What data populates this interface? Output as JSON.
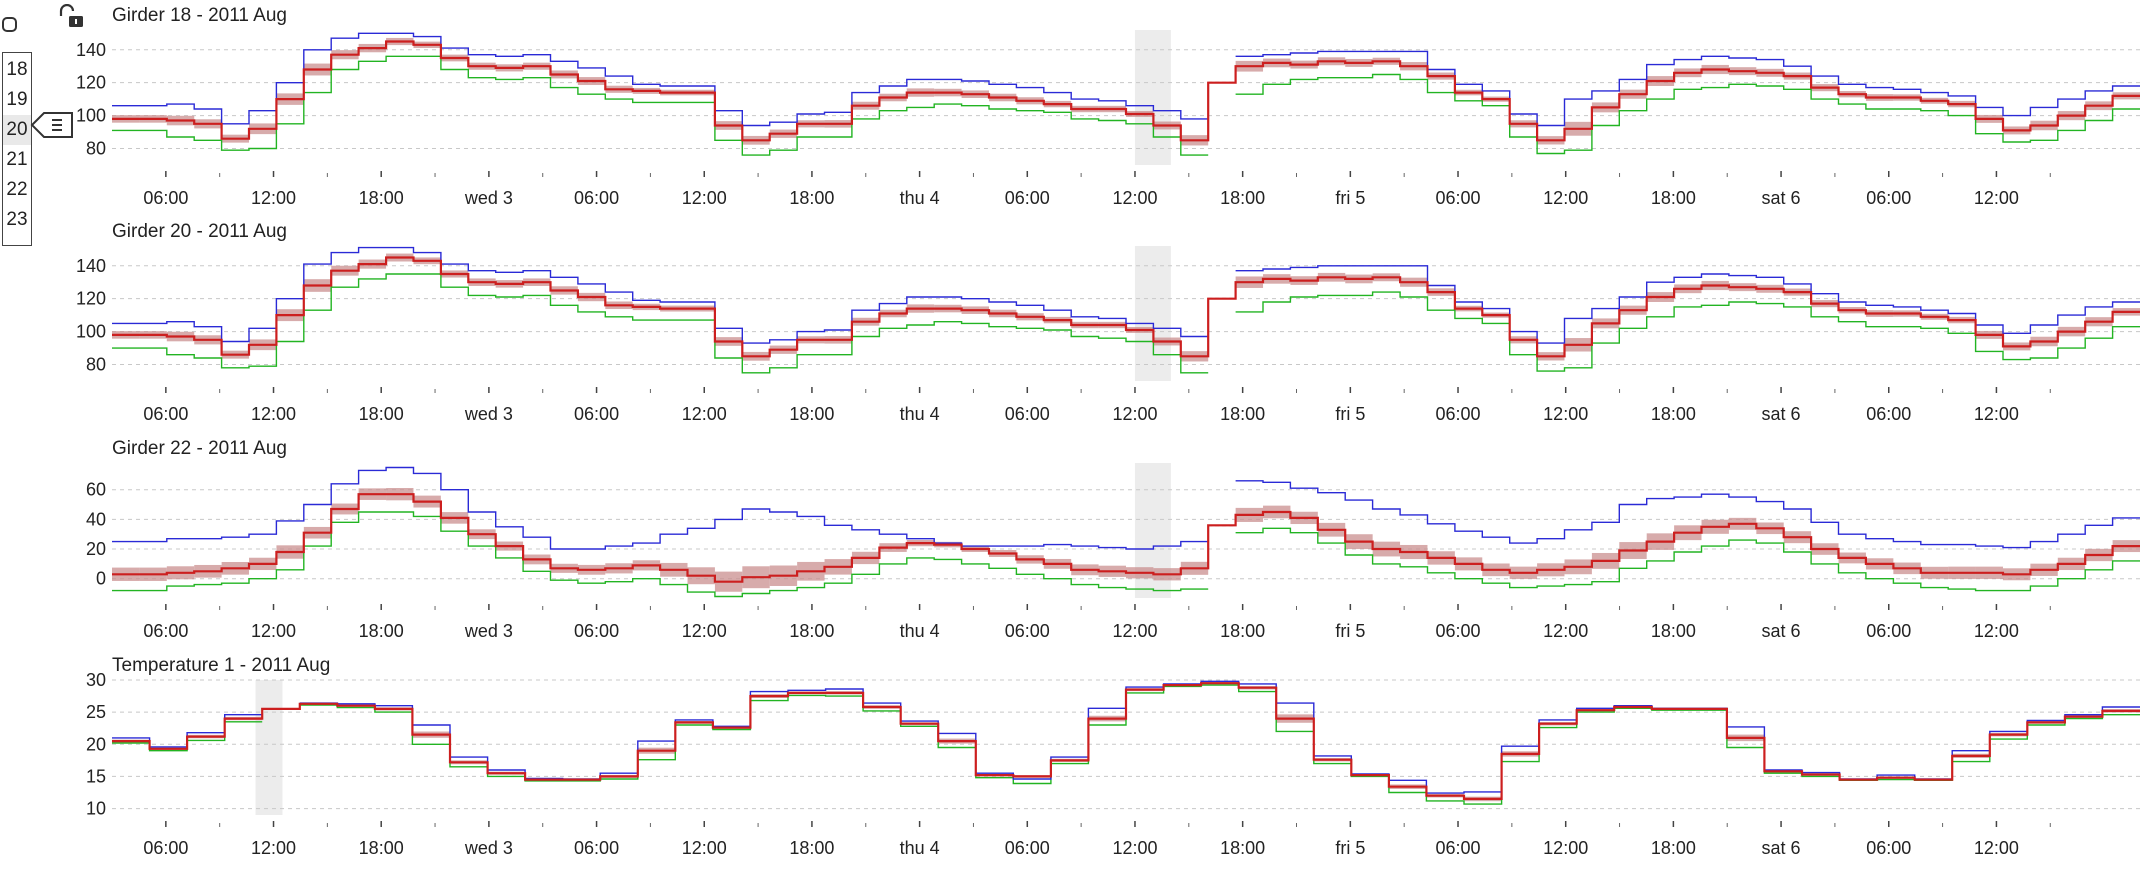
{
  "colors": {
    "max": "#2a2ad6",
    "mean": "#cc1f1f",
    "min": "#22b422",
    "band": "#c98f8f",
    "grid": "#c8c8c8",
    "gap": "#ececec"
  },
  "icons": {
    "checkbox": "checkbox-icon",
    "lock": "unlock-icon",
    "menu": "menu-icon"
  },
  "selector": {
    "items": [
      "18",
      "19",
      "20",
      "21",
      "22",
      "23"
    ],
    "active": "20"
  },
  "x_ticks": [
    "06:00",
    "12:00",
    "18:00",
    "wed 3",
    "06:00",
    "12:00",
    "18:00",
    "thu 4",
    "06:00",
    "12:00",
    "18:00",
    "fri 5",
    "06:00",
    "12:00",
    "18:00",
    "sat 6",
    "06:00",
    "12:00"
  ],
  "chart_data": [
    {
      "type": "line",
      "title": "Girder 18 - 2011 Aug",
      "ylim": [
        70,
        152
      ],
      "yticks": [
        80,
        100,
        120,
        140
      ],
      "x_range": [
        "2011-08-02 03:00",
        "2011-08-06 20:00"
      ],
      "grid": true,
      "gap": [
        "2011-08-04 12:00",
        "2011-08-04 14:00"
      ],
      "series": [
        {
          "name": "max",
          "values": [
            106,
            106,
            107,
            104,
            95,
            103,
            120,
            140,
            147,
            150,
            150,
            148,
            141,
            137,
            136,
            137,
            133,
            129,
            124,
            119,
            118,
            118,
            103,
            94,
            96,
            101,
            102,
            114,
            118,
            122,
            122,
            121,
            119,
            117,
            114,
            110,
            109,
            106,
            103,
            98,
            null,
            136,
            137,
            138,
            139,
            139,
            139,
            139,
            128,
            119,
            115,
            101,
            94,
            110,
            115,
            122,
            131,
            134,
            136,
            135,
            134,
            130,
            124,
            119,
            117,
            116,
            114,
            112,
            105,
            100,
            105,
            110,
            115,
            118
          ]
        },
        {
          "name": "mean",
          "values": [
            98,
            98,
            97,
            95,
            86,
            92,
            110,
            128,
            137,
            141,
            145,
            143,
            135,
            130,
            129,
            130,
            125,
            121,
            116,
            115,
            114,
            114,
            94,
            85,
            89,
            95,
            95,
            106,
            111,
            114,
            114,
            113,
            111,
            109,
            107,
            104,
            104,
            101,
            94,
            85,
            120,
            130,
            132,
            131,
            133,
            132,
            133,
            130,
            124,
            114,
            110,
            95,
            85,
            92,
            105,
            113,
            121,
            126,
            128,
            127,
            126,
            124,
            117,
            113,
            111,
            111,
            109,
            107,
            98,
            91,
            94,
            100,
            106,
            112
          ]
        },
        {
          "name": "min",
          "values": [
            91,
            91,
            87,
            85,
            79,
            80,
            95,
            114,
            128,
            133,
            136,
            136,
            128,
            123,
            122,
            123,
            117,
            113,
            110,
            108,
            108,
            108,
            85,
            76,
            79,
            87,
            87,
            98,
            103,
            105,
            107,
            106,
            104,
            103,
            102,
            98,
            97,
            95,
            87,
            76,
            null,
            113,
            119,
            122,
            123,
            123,
            125,
            122,
            114,
            109,
            106,
            87,
            77,
            79,
            94,
            103,
            110,
            116,
            117,
            119,
            118,
            116,
            110,
            107,
            104,
            104,
            103,
            100,
            89,
            84,
            85,
            91,
            97,
            104
          ]
        }
      ]
    },
    {
      "type": "line",
      "title": "Girder 20 - 2011 Aug",
      "ylim": [
        70,
        152
      ],
      "yticks": [
        80,
        100,
        120,
        140
      ],
      "x_range": [
        "2011-08-02 03:00",
        "2011-08-06 20:00"
      ],
      "grid": true,
      "gap": [
        "2011-08-04 12:00",
        "2011-08-04 14:00"
      ],
      "series": [
        {
          "name": "max",
          "values": [
            105,
            105,
            106,
            103,
            94,
            102,
            120,
            141,
            148,
            151,
            151,
            148,
            141,
            137,
            136,
            137,
            133,
            129,
            124,
            119,
            118,
            118,
            102,
            93,
            95,
            100,
            101,
            113,
            117,
            121,
            121,
            120,
            118,
            116,
            113,
            109,
            108,
            105,
            102,
            97,
            null,
            137,
            138,
            139,
            140,
            140,
            140,
            140,
            128,
            118,
            114,
            100,
            93,
            108,
            114,
            121,
            130,
            133,
            135,
            134,
            133,
            129,
            123,
            118,
            116,
            115,
            113,
            111,
            104,
            99,
            104,
            110,
            115,
            118
          ]
        },
        {
          "name": "mean",
          "values": [
            98,
            98,
            97,
            95,
            86,
            92,
            110,
            128,
            137,
            141,
            145,
            143,
            135,
            130,
            129,
            130,
            125,
            121,
            116,
            115,
            114,
            114,
            94,
            85,
            89,
            95,
            95,
            106,
            111,
            114,
            114,
            113,
            111,
            109,
            107,
            104,
            104,
            101,
            94,
            85,
            120,
            130,
            132,
            131,
            133,
            132,
            133,
            130,
            124,
            114,
            110,
            95,
            85,
            92,
            105,
            113,
            121,
            126,
            128,
            127,
            126,
            124,
            117,
            113,
            111,
            111,
            109,
            107,
            98,
            91,
            94,
            100,
            106,
            112
          ]
        },
        {
          "name": "min",
          "values": [
            90,
            90,
            86,
            84,
            78,
            79,
            94,
            113,
            127,
            132,
            135,
            135,
            127,
            122,
            121,
            122,
            116,
            112,
            109,
            107,
            107,
            107,
            84,
            75,
            78,
            86,
            86,
            97,
            102,
            104,
            106,
            105,
            103,
            102,
            101,
            97,
            96,
            94,
            86,
            75,
            null,
            112,
            118,
            121,
            122,
            122,
            124,
            121,
            113,
            108,
            105,
            86,
            76,
            78,
            93,
            102,
            109,
            115,
            116,
            118,
            117,
            115,
            109,
            106,
            103,
            103,
            102,
            99,
            88,
            83,
            84,
            90,
            96,
            103
          ]
        }
      ]
    },
    {
      "type": "line",
      "title": "Girder 22 - 2011 Aug",
      "ylim": [
        -13,
        78
      ],
      "yticks": [
        0,
        20,
        40,
        60
      ],
      "x_range": [
        "2011-08-02 03:00",
        "2011-08-06 20:00"
      ],
      "grid": true,
      "gap": [
        "2011-08-04 12:00",
        "2011-08-04 14:00"
      ],
      "series": [
        {
          "name": "max",
          "values": [
            25,
            25,
            27,
            27,
            28,
            30,
            39,
            50,
            64,
            73,
            75,
            71,
            60,
            45,
            35,
            28,
            20,
            20,
            22,
            24,
            30,
            34,
            40,
            47,
            45,
            42,
            36,
            33,
            30,
            27,
            24,
            22,
            22,
            22,
            23,
            22,
            21,
            20,
            22,
            25,
            null,
            66,
            65,
            61,
            58,
            53,
            47,
            43,
            37,
            32,
            28,
            24,
            27,
            33,
            38,
            50,
            54,
            55,
            57,
            55,
            52,
            47,
            38,
            30,
            27,
            25,
            23,
            23,
            22,
            21,
            25,
            30,
            36,
            41
          ]
        },
        {
          "name": "mean",
          "values": [
            3,
            3,
            4,
            5,
            7,
            10,
            18,
            31,
            47,
            57,
            57,
            52,
            41,
            30,
            22,
            13,
            7,
            6,
            7,
            9,
            6,
            2,
            -2,
            1,
            2,
            5,
            8,
            14,
            21,
            24,
            23,
            20,
            17,
            13,
            10,
            6,
            5,
            4,
            3,
            7,
            36,
            43,
            45,
            41,
            33,
            25,
            20,
            18,
            14,
            10,
            6,
            4,
            6,
            8,
            12,
            19,
            25,
            31,
            35,
            37,
            34,
            28,
            20,
            14,
            10,
            7,
            4,
            4,
            4,
            3,
            6,
            10,
            16,
            22
          ]
        },
        {
          "name": "min",
          "values": [
            -8,
            -8,
            -5,
            -4,
            -3,
            0,
            6,
            22,
            38,
            45,
            45,
            42,
            32,
            22,
            14,
            5,
            -1,
            -3,
            -2,
            0,
            -4,
            -9,
            -12,
            -10,
            -8,
            -6,
            -3,
            3,
            10,
            14,
            13,
            10,
            7,
            3,
            0,
            -4,
            -6,
            -7,
            -8,
            -7,
            null,
            31,
            34,
            31,
            24,
            16,
            10,
            8,
            4,
            0,
            -3,
            -6,
            -5,
            -4,
            -2,
            7,
            12,
            18,
            22,
            26,
            24,
            18,
            10,
            4,
            0,
            -3,
            -6,
            -7,
            -8,
            -8,
            -5,
            0,
            6,
            12
          ]
        }
      ]
    },
    {
      "type": "line",
      "title": "Temperature 1 - 2011 Aug",
      "ylim": [
        9,
        30
      ],
      "yticks": [
        10,
        15,
        20,
        25,
        30
      ],
      "x_range": [
        "2011-08-02 03:00",
        "2011-08-06 20:00"
      ],
      "grid": true,
      "gap": [
        "2011-08-02 11:00",
        "2011-08-02 12:30"
      ],
      "series": [
        {
          "name": "max",
          "values": [
            21,
            19.6,
            21.8,
            24.6,
            null,
            26.4,
            26.3,
            26,
            23,
            18,
            16,
            14.7,
            14.6,
            15.5,
            20.5,
            23.8,
            22.8,
            28.2,
            28.4,
            28.6,
            26.4,
            23.6,
            21.7,
            15.5,
            14.6,
            18,
            25.6,
            28.9,
            29.4,
            29.8,
            29.4,
            26.4,
            18.2,
            15.4,
            14.4,
            12.4,
            12.6,
            19.7,
            23.8,
            25.6,
            26,
            25.6,
            25.6,
            22.7,
            16,
            15.6,
            14.6,
            15.2,
            14.6,
            19,
            22,
            23.7,
            24.6,
            25.8
          ]
        },
        {
          "name": "mean",
          "values": [
            20.5,
            19.3,
            21.2,
            24,
            25.5,
            26.3,
            26,
            25.5,
            21.5,
            17.2,
            15.5,
            14.5,
            14.5,
            15,
            19,
            23.4,
            22.6,
            27.5,
            28,
            28,
            25.8,
            23.2,
            20.5,
            15.2,
            15,
            17.5,
            24,
            28.5,
            29.2,
            29.5,
            28.8,
            24,
            17.6,
            15.2,
            13.4,
            12,
            11.5,
            18.5,
            23.2,
            25.3,
            25.8,
            25.5,
            25.5,
            21,
            15.8,
            15.3,
            14.5,
            14.8,
            14.5,
            18.2,
            21.5,
            23.4,
            24.3,
            25.2
          ]
        },
        {
          "name": "min",
          "values": [
            20.2,
            19,
            20.6,
            23.5,
            null,
            26.1,
            25.7,
            25,
            20,
            16.5,
            15,
            14.3,
            14.3,
            14.6,
            17.6,
            23,
            22.3,
            26.8,
            27.6,
            27.5,
            25.2,
            22.8,
            19.5,
            14.8,
            13.9,
            17,
            23,
            28,
            29,
            29.2,
            28.2,
            22,
            17,
            15,
            12.5,
            11.2,
            10.7,
            17.3,
            22.6,
            25,
            25.6,
            25.3,
            25.3,
            19.5,
            15.5,
            15,
            14.4,
            14.5,
            14.4,
            17.3,
            20.8,
            23,
            24,
            24.6
          ]
        }
      ]
    }
  ]
}
